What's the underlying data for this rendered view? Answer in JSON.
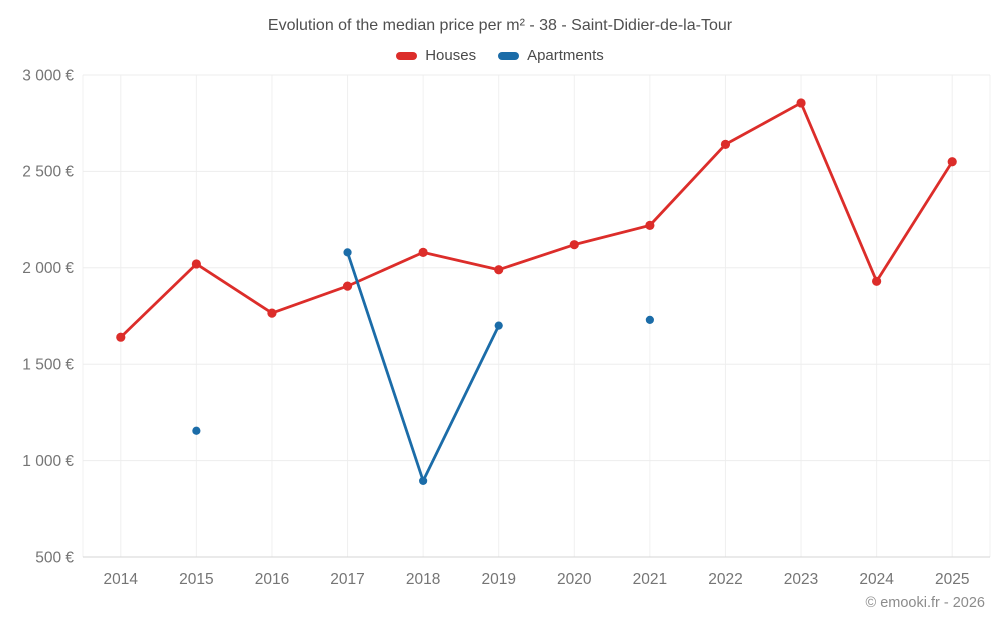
{
  "chart": {
    "title": "Evolution of the median price per m² - 38 - Saint-Didier-de-la-Tour",
    "watermark": "© emooki.fr - 2026"
  },
  "legend": {
    "items": [
      {
        "label": "Houses",
        "color": "#dc2d2a"
      },
      {
        "label": "Apartments",
        "color": "#1b6ca8"
      }
    ]
  },
  "chart_data": {
    "type": "line",
    "title": "Evolution of the median price per m² - 38 - Saint-Didier-de-la-Tour",
    "categories": [
      "2014",
      "2015",
      "2016",
      "2017",
      "2018",
      "2019",
      "2020",
      "2021",
      "2022",
      "2023",
      "2024",
      "2025"
    ],
    "series": [
      {
        "name": "Houses",
        "color": "#dc2d2a",
        "marker_radius": 4.6,
        "values": [
          1640,
          2020,
          1765,
          1905,
          2080,
          1990,
          2120,
          2220,
          2640,
          2855,
          1930,
          2550
        ]
      },
      {
        "name": "Apartments",
        "color": "#1b6ca8",
        "marker_radius": 4.1,
        "values": [
          null,
          1155,
          null,
          2080,
          895,
          1700,
          null,
          1730,
          null,
          null,
          null,
          null
        ]
      }
    ],
    "ylim": [
      500,
      3000
    ],
    "y_ticks": [
      {
        "value": 3000,
        "label": "3 000 €"
      },
      {
        "value": 2500,
        "label": "2 500 €"
      },
      {
        "value": 2000,
        "label": "2 000 €"
      },
      {
        "value": 1500,
        "label": "1 500 €"
      },
      {
        "value": 1000,
        "label": "1 000 €"
      },
      {
        "value": 500,
        "label": "500 €"
      }
    ],
    "xlabel": "",
    "ylabel": "",
    "grid": true,
    "legend_position": "top"
  }
}
